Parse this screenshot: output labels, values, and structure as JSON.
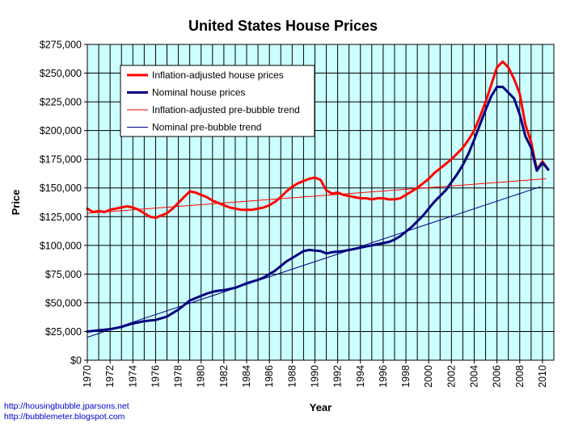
{
  "credits": [
    "http://housingbubble.jparsons.net",
    "http://bubblemeter.blogspot.com"
  ],
  "colors": {
    "background": "#ccffff",
    "inflation_adjusted": "#ff0000",
    "nominal": "#000080",
    "inflation_trend": "#ff0000",
    "nominal_trend": "#000080",
    "grid": "#000000"
  },
  "chart_data": {
    "type": "line",
    "title": "United States House Prices",
    "xlabel": "Year",
    "ylabel": "Price",
    "xlim": [
      1970,
      2011
    ],
    "ylim": [
      0,
      275000
    ],
    "x_ticks": [
      1970,
      1972,
      1974,
      1976,
      1978,
      1980,
      1982,
      1984,
      1986,
      1988,
      1990,
      1992,
      1994,
      1996,
      1998,
      2000,
      2002,
      2004,
      2006,
      2008,
      2010
    ],
    "x_tick_labels": [
      "1970",
      "1972",
      "1974",
      "1976",
      "1978",
      "1980",
      "1982",
      "1984",
      "1986",
      "1988",
      "1990",
      "1992",
      "1994",
      "1996",
      "1998",
      "2000",
      "2002",
      "2004",
      "2006",
      "2008",
      "2010"
    ],
    "y_ticks": [
      0,
      25000,
      50000,
      75000,
      100000,
      125000,
      150000,
      175000,
      200000,
      225000,
      250000,
      275000
    ],
    "y_tick_labels": [
      "$0",
      "$25,000",
      "$50,000",
      "$75,000",
      "$100,000",
      "$125,000",
      "$150,000",
      "$175,000",
      "$200,000",
      "$225,000",
      "$250,000",
      "$275,000"
    ],
    "grid": true,
    "legend_position": "top-left",
    "series": [
      {
        "name": "Inflation-adjusted house prices",
        "style": "thick",
        "color": "#ff0000",
        "x": [
          1970,
          1970.5,
          1971,
          1971.5,
          1972,
          1972.5,
          1973,
          1973.5,
          1974,
          1974.5,
          1975,
          1975.5,
          1976,
          1976.5,
          1977,
          1977.5,
          1978,
          1978.5,
          1979,
          1979.5,
          1980,
          1980.5,
          1981,
          1981.5,
          1982,
          1982.5,
          1983,
          1983.5,
          1984,
          1984.5,
          1985,
          1985.5,
          1986,
          1986.5,
          1987,
          1987.5,
          1988,
          1988.5,
          1989,
          1989.5,
          1990,
          1990.5,
          1991,
          1991.5,
          1992,
          1992.5,
          1993,
          1993.5,
          1994,
          1994.5,
          1995,
          1995.5,
          1996,
          1996.5,
          1997,
          1997.5,
          1998,
          1998.5,
          1999,
          1999.5,
          2000,
          2000.5,
          2001,
          2001.5,
          2002,
          2002.5,
          2003,
          2003.5,
          2004,
          2004.5,
          2005,
          2005.5,
          2006,
          2006.5,
          2007,
          2007.5,
          2008,
          2008.5,
          2009,
          2009.5,
          2010,
          2010.5
        ],
        "values": [
          132000,
          129000,
          130000,
          129000,
          131000,
          132000,
          133000,
          134000,
          133000,
          131000,
          128000,
          125000,
          124000,
          126000,
          128000,
          132000,
          137000,
          142000,
          147000,
          146000,
          144000,
          142000,
          139000,
          137000,
          135000,
          133000,
          132000,
          131000,
          131000,
          131000,
          132000,
          133000,
          135000,
          138000,
          142000,
          147000,
          151000,
          154000,
          156000,
          158000,
          159000,
          157000,
          148000,
          145000,
          146000,
          144000,
          143000,
          142000,
          141000,
          141000,
          140000,
          141000,
          141000,
          140000,
          140000,
          141000,
          144000,
          147000,
          150000,
          154000,
          158000,
          163000,
          167000,
          171000,
          175000,
          180000,
          185000,
          192000,
          200000,
          212000,
          225000,
          240000,
          255000,
          260000,
          255000,
          245000,
          232000,
          205000,
          190000,
          166000,
          173000,
          166000
        ]
      },
      {
        "name": "Nominal house prices",
        "style": "thick",
        "color": "#000080",
        "x": [
          1970,
          1970.5,
          1971,
          1971.5,
          1972,
          1972.5,
          1973,
          1973.5,
          1974,
          1974.5,
          1975,
          1975.5,
          1976,
          1976.5,
          1977,
          1977.5,
          1978,
          1978.5,
          1979,
          1979.5,
          1980,
          1980.5,
          1981,
          1981.5,
          1982,
          1982.5,
          1983,
          1983.5,
          1984,
          1984.5,
          1985,
          1985.5,
          1986,
          1986.5,
          1987,
          1987.5,
          1988,
          1988.5,
          1989,
          1989.5,
          1990,
          1990.5,
          1991,
          1991.5,
          1992,
          1992.5,
          1993,
          1993.5,
          1994,
          1994.5,
          1995,
          1995.5,
          1996,
          1996.5,
          1997,
          1997.5,
          1998,
          1998.5,
          1999,
          1999.5,
          2000,
          2000.5,
          2001,
          2001.5,
          2002,
          2002.5,
          2003,
          2003.5,
          2004,
          2004.5,
          2005,
          2005.5,
          2006,
          2006.5,
          2007,
          2007.5,
          2008,
          2008.5,
          2009,
          2009.5,
          2010,
          2010.5
        ],
        "values": [
          25000,
          25500,
          26000,
          26500,
          27000,
          28000,
          29000,
          30500,
          32000,
          33000,
          34000,
          34500,
          35000,
          36500,
          38000,
          41000,
          44000,
          48000,
          52000,
          54000,
          56000,
          58000,
          59500,
          60500,
          61000,
          62000,
          63000,
          65000,
          67000,
          68500,
          70000,
          72000,
          75000,
          78000,
          82000,
          86000,
          89000,
          92000,
          95000,
          96000,
          95500,
          95000,
          93000,
          94000,
          94500,
          95000,
          96000,
          97000,
          98000,
          99000,
          100000,
          101000,
          102000,
          103000,
          105000,
          108000,
          112000,
          116000,
          121000,
          126000,
          132000,
          138000,
          143000,
          148000,
          155000,
          162000,
          170000,
          180000,
          192000,
          205000,
          218000,
          230000,
          238000,
          238000,
          233000,
          228000,
          214000,
          195000,
          185000,
          165000,
          172000,
          166000
        ]
      },
      {
        "name": "Inflation-adjusted pre-bubble trend",
        "style": "thin",
        "color": "#ff0000",
        "x": [
          1970,
          2010.3
        ],
        "values": [
          128000,
          158000
        ]
      },
      {
        "name": "Nominal pre-bubble trend",
        "style": "thin",
        "color": "#000080",
        "x": [
          1970,
          2009.8
        ],
        "values": [
          20000,
          151000
        ]
      }
    ]
  }
}
